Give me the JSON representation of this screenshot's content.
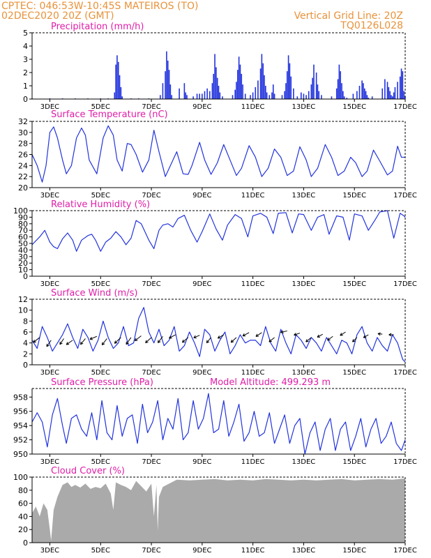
{
  "header": {
    "line1": "CPTEC:   046:53W-10:45S   MATEIROS (TO)",
    "line2": "02DEC2020 20Z (GMT)",
    "grid_note": "Vertical Grid Line: 20Z",
    "code": "TQ0126L028"
  },
  "colors": {
    "header": "#e8923a",
    "title": "#e01ea8",
    "series": "#2233dd",
    "cloud": "#aaaaaa"
  },
  "x_ticks": [
    "3DEC",
    "5DEC",
    "7DEC",
    "9DEC",
    "11DEC",
    "13DEC",
    "15DEC",
    "17DEC"
  ],
  "x_tick_days": [
    3,
    5,
    7,
    9,
    11,
    13,
    15,
    17
  ],
  "chart_data": [
    {
      "type": "bar",
      "title": "Precipitation (mm/h)",
      "ylim": [
        0,
        5
      ],
      "yticks": [
        0,
        1,
        2,
        3,
        4,
        5
      ],
      "x_unit": "day of December 2020",
      "x_range": [
        2.3,
        17.0
      ],
      "x": [
        2.3,
        3.0,
        3.5,
        4.0,
        4.5,
        5.0,
        5.3,
        5.55,
        5.6,
        5.65,
        5.7,
        5.75,
        5.8,
        5.85,
        6.2,
        6.5,
        6.9,
        7.35,
        7.45,
        7.55,
        7.6,
        7.65,
        7.7,
        7.75,
        7.8,
        8.1,
        8.3,
        8.35,
        8.4,
        8.65,
        8.8,
        8.9,
        9.0,
        9.1,
        9.2,
        9.3,
        9.4,
        9.45,
        9.5,
        9.55,
        9.6,
        9.65,
        9.7,
        9.8,
        10.2,
        10.3,
        10.35,
        10.4,
        10.45,
        10.5,
        10.55,
        10.6,
        10.7,
        10.9,
        11.0,
        11.1,
        11.2,
        11.3,
        11.35,
        11.4,
        11.45,
        11.5,
        11.55,
        11.65,
        11.75,
        11.8,
        11.85,
        12.15,
        12.25,
        12.3,
        12.35,
        12.4,
        12.45,
        12.5,
        12.6,
        12.75,
        12.9,
        13.0,
        13.1,
        13.2,
        13.3,
        13.35,
        13.4,
        13.5,
        13.55,
        13.6,
        13.7,
        14.1,
        14.3,
        14.35,
        14.4,
        14.45,
        14.5,
        14.55,
        14.6,
        14.7,
        14.95,
        15.1,
        15.2,
        15.3,
        15.35,
        15.4,
        15.45,
        15.5,
        15.55,
        15.7,
        16.1,
        16.2,
        16.3,
        16.35,
        16.4,
        16.45,
        16.5,
        16.55,
        16.6,
        16.7,
        16.8,
        16.85,
        16.9,
        16.95,
        17.0
      ],
      "values": [
        0.05,
        0.05,
        0.05,
        0.05,
        0.05,
        0.05,
        0.05,
        0.5,
        2.6,
        3.3,
        2.8,
        1.8,
        0.9,
        0.2,
        0.05,
        0.05,
        0.05,
        0.3,
        1.2,
        2.1,
        3.6,
        2.9,
        2.2,
        1.1,
        0.3,
        0.8,
        1.2,
        0.5,
        0.3,
        0.2,
        0.4,
        0.4,
        0.4,
        0.6,
        0.8,
        0.6,
        1.2,
        1.9,
        3.4,
        2.4,
        1.6,
        1.0,
        0.5,
        0.2,
        0.3,
        0.7,
        1.3,
        2.2,
        3.2,
        2.6,
        1.9,
        1.1,
        0.4,
        0.3,
        0.5,
        0.9,
        1.4,
        2.3,
        3.4,
        2.7,
        1.8,
        1.0,
        0.5,
        0.3,
        0.5,
        1.1,
        0.4,
        0.3,
        0.6,
        1.2,
        2.1,
        3.3,
        2.7,
        1.7,
        0.8,
        0.2,
        0.5,
        0.4,
        0.3,
        0.6,
        1.1,
        1.6,
        2.6,
        2.0,
        1.1,
        0.6,
        0.3,
        0.2,
        0.8,
        1.5,
        2.6,
        2.1,
        1.2,
        0.6,
        0.2,
        0.1,
        0.4,
        0.6,
        1.0,
        1.4,
        1.2,
        0.8,
        0.6,
        0.3,
        0.1,
        0.2,
        0.8,
        1.5,
        1.3,
        0.9,
        0.6,
        0.3,
        0.2,
        0.5,
        0.9,
        1.3,
        1.7,
        2.3,
        2.1,
        0.6,
        0.2
      ]
    },
    {
      "type": "line",
      "title": "Surface Temperature (nC)",
      "ylim": [
        20,
        32
      ],
      "yticks": [
        20,
        22,
        24,
        26,
        28,
        30,
        32
      ],
      "x_range": [
        2.3,
        17.0
      ],
      "x": [
        2.3,
        2.5,
        2.7,
        2.85,
        3.0,
        3.15,
        3.3,
        3.5,
        3.65,
        3.85,
        4.05,
        4.25,
        4.4,
        4.55,
        4.85,
        5.1,
        5.3,
        5.5,
        5.65,
        5.85,
        6.05,
        6.2,
        6.4,
        6.65,
        6.9,
        7.1,
        7.3,
        7.55,
        7.75,
        8.0,
        8.25,
        8.45,
        8.6,
        8.9,
        9.1,
        9.35,
        9.6,
        9.85,
        10.1,
        10.35,
        10.55,
        10.85,
        11.1,
        11.35,
        11.6,
        11.85,
        12.1,
        12.35,
        12.6,
        12.85,
        13.1,
        13.3,
        13.55,
        13.85,
        14.1,
        14.35,
        14.6,
        14.85,
        15.05,
        15.3,
        15.5,
        15.75,
        16.0,
        16.3,
        16.5,
        16.7,
        16.85,
        17.0
      ],
      "values": [
        26.0,
        24.0,
        21.0,
        24.0,
        30.0,
        31.0,
        29.0,
        25.0,
        22.5,
        24.0,
        29.0,
        30.8,
        29.5,
        25.0,
        22.5,
        29.0,
        31.2,
        29.5,
        25.0,
        23.0,
        28.0,
        27.8,
        26.0,
        22.8,
        25.0,
        30.4,
        26.5,
        22.0,
        24.0,
        26.5,
        22.5,
        22.4,
        24.0,
        28.2,
        25.0,
        22.4,
        24.5,
        27.8,
        25.0,
        22.2,
        23.5,
        27.6,
        25.5,
        22.0,
        23.5,
        27.0,
        25.5,
        22.2,
        23.0,
        27.4,
        25.0,
        22.0,
        23.5,
        27.8,
        25.5,
        22.2,
        23.0,
        25.5,
        24.5,
        22.0,
        23.0,
        26.8,
        24.8,
        22.3,
        23.0,
        27.5,
        25.5,
        25.5
      ]
    },
    {
      "type": "line",
      "title": "Relative Humidity (%)",
      "ylim": [
        0,
        100
      ],
      "yticks": [
        0,
        10,
        20,
        30,
        40,
        50,
        60,
        70,
        80,
        90,
        100
      ],
      "x_range": [
        2.3,
        17.0
      ],
      "x": [
        2.3,
        2.6,
        2.8,
        3.0,
        3.15,
        3.3,
        3.5,
        3.7,
        3.9,
        4.05,
        4.25,
        4.5,
        4.65,
        4.8,
        5.0,
        5.2,
        5.4,
        5.6,
        5.8,
        6.0,
        6.2,
        6.4,
        6.6,
        6.9,
        7.1,
        7.3,
        7.45,
        7.65,
        7.85,
        8.05,
        8.3,
        8.55,
        8.8,
        9.0,
        9.3,
        9.55,
        9.8,
        10.0,
        10.3,
        10.55,
        10.8,
        11.0,
        11.3,
        11.55,
        11.8,
        12.0,
        12.3,
        12.55,
        12.8,
        13.0,
        13.3,
        13.55,
        13.8,
        14.0,
        14.3,
        14.55,
        14.8,
        15.0,
        15.3,
        15.55,
        15.8,
        16.0,
        16.3,
        16.55,
        16.8,
        16.95,
        17.0
      ],
      "values": [
        48,
        60,
        70,
        52,
        45,
        42,
        57,
        66,
        55,
        38,
        55,
        62,
        64,
        55,
        38,
        52,
        58,
        68,
        60,
        48,
        58,
        85,
        80,
        55,
        42,
        70,
        78,
        80,
        75,
        88,
        93,
        70,
        52,
        68,
        95,
        72,
        55,
        78,
        94,
        88,
        60,
        92,
        96,
        90,
        65,
        96,
        97,
        66,
        95,
        94,
        70,
        90,
        94,
        64,
        92,
        90,
        55,
        95,
        92,
        70,
        85,
        98,
        100,
        58,
        96,
        92,
        90
      ]
    },
    {
      "type": "line",
      "title": "Surface Wind (m/s)",
      "ylim": [
        0,
        12
      ],
      "yticks": [
        0,
        2,
        4,
        6,
        8,
        10,
        12
      ],
      "x_range": [
        2.3,
        17.0
      ],
      "x": [
        2.3,
        2.5,
        2.7,
        2.9,
        3.1,
        3.3,
        3.5,
        3.7,
        3.9,
        4.1,
        4.3,
        4.5,
        4.7,
        4.9,
        5.1,
        5.3,
        5.5,
        5.7,
        5.9,
        6.1,
        6.3,
        6.5,
        6.7,
        6.9,
        7.1,
        7.3,
        7.5,
        7.7,
        7.9,
        8.1,
        8.3,
        8.5,
        8.7,
        8.9,
        9.1,
        9.3,
        9.5,
        9.7,
        9.9,
        10.1,
        10.3,
        10.5,
        10.7,
        10.9,
        11.1,
        11.3,
        11.5,
        11.7,
        11.9,
        12.1,
        12.3,
        12.5,
        12.7,
        12.9,
        13.1,
        13.3,
        13.5,
        13.7,
        13.9,
        14.1,
        14.3,
        14.5,
        14.7,
        14.9,
        15.1,
        15.3,
        15.5,
        15.7,
        15.9,
        16.1,
        16.3,
        16.5,
        16.7,
        16.9,
        17.0
      ],
      "values": [
        4.5,
        3.0,
        7.0,
        5.0,
        2.5,
        4.0,
        5.5,
        7.5,
        5.0,
        3.0,
        6.5,
        5.0,
        2.5,
        4.5,
        8.0,
        5.0,
        3.0,
        4.0,
        7.0,
        3.5,
        4.0,
        8.5,
        10.5,
        6.0,
        4.0,
        6.5,
        3.5,
        4.5,
        7.0,
        2.5,
        3.5,
        6.0,
        4.0,
        1.5,
        6.5,
        5.5,
        2.5,
        4.5,
        6.0,
        2.0,
        3.5,
        5.5,
        4.0,
        4.5,
        4.5,
        3.5,
        7.0,
        4.0,
        2.5,
        6.5,
        4.0,
        2.0,
        5.5,
        4.5,
        3.0,
        5.0,
        4.0,
        2.5,
        5.0,
        3.5,
        2.0,
        4.5,
        4.0,
        2.0,
        5.5,
        7.0,
        4.0,
        2.5,
        5.0,
        3.5,
        2.5,
        5.5,
        4.0,
        1.0,
        0.5
      ],
      "vectors": [
        {
          "x": 2.6,
          "y": 5.0,
          "u": -1.3,
          "v": -1.0
        },
        {
          "x": 3.05,
          "y": 4.5,
          "u": -0.9,
          "v": -1.3
        },
        {
          "x": 3.55,
          "y": 4.8,
          "u": -0.8,
          "v": -1.2
        },
        {
          "x": 3.9,
          "y": 4.5,
          "u": -1.3,
          "v": -0.9
        },
        {
          "x": 4.4,
          "y": 4.8,
          "u": -1.0,
          "v": -1.2
        },
        {
          "x": 4.85,
          "y": 5.2,
          "u": -1.4,
          "v": -0.6
        },
        {
          "x": 5.25,
          "y": 4.8,
          "u": -1.0,
          "v": -1.3
        },
        {
          "x": 5.8,
          "y": 5.0,
          "u": -1.3,
          "v": -1.2
        },
        {
          "x": 6.2,
          "y": 5.0,
          "u": -1.0,
          "v": -1.4
        },
        {
          "x": 6.6,
          "y": 5.3,
          "u": -1.3,
          "v": -1.0
        },
        {
          "x": 7.0,
          "y": 5.0,
          "u": -1.2,
          "v": -1.1
        },
        {
          "x": 7.45,
          "y": 5.2,
          "u": -1.0,
          "v": -1.3
        },
        {
          "x": 7.95,
          "y": 5.5,
          "u": -1.3,
          "v": -0.7
        },
        {
          "x": 8.45,
          "y": 5.0,
          "u": -1.2,
          "v": -1.0
        },
        {
          "x": 8.9,
          "y": 5.4,
          "u": -1.2,
          "v": -0.5
        },
        {
          "x": 9.35,
          "y": 5.0,
          "u": -0.9,
          "v": -1.1
        },
        {
          "x": 9.85,
          "y": 5.5,
          "u": -1.2,
          "v": -0.7
        },
        {
          "x": 10.35,
          "y": 5.0,
          "u": -1.1,
          "v": -1.0
        },
        {
          "x": 10.85,
          "y": 5.9,
          "u": -1.3,
          "v": -0.7
        },
        {
          "x": 11.35,
          "y": 5.9,
          "u": -1.2,
          "v": -0.8
        },
        {
          "x": 11.85,
          "y": 5.0,
          "u": -1.1,
          "v": -0.9
        },
        {
          "x": 12.35,
          "y": 6.2,
          "u": -1.3,
          "v": -0.3
        },
        {
          "x": 12.85,
          "y": 5.8,
          "u": -1.2,
          "v": -0.4
        },
        {
          "x": 13.3,
          "y": 5.0,
          "u": -1.1,
          "v": -0.9
        },
        {
          "x": 13.75,
          "y": 5.6,
          "u": -1.1,
          "v": -0.6
        },
        {
          "x": 14.15,
          "y": 5.2,
          "u": -1.1,
          "v": -0.8
        },
        {
          "x": 14.65,
          "y": 6.0,
          "u": -1.1,
          "v": -0.7
        },
        {
          "x": 15.1,
          "y": 5.0,
          "u": -0.9,
          "v": -0.9
        },
        {
          "x": 15.55,
          "y": 5.5,
          "u": -1.0,
          "v": -0.6
        },
        {
          "x": 16.1,
          "y": 5.6,
          "u": -0.9,
          "v": 0.1
        },
        {
          "x": 16.55,
          "y": 5.5,
          "u": -1.0,
          "v": 0.0
        }
      ]
    },
    {
      "type": "line",
      "title": "Surface Pressure (hPa)",
      "model_altitude_label": "Model Altitude: 499.293 m",
      "ylim": [
        950,
        959.2
      ],
      "yticks": [
        950,
        952,
        954,
        956,
        958
      ],
      "x_range": [
        2.3,
        17.0
      ],
      "x": [
        2.3,
        2.5,
        2.7,
        2.9,
        3.1,
        3.3,
        3.5,
        3.65,
        3.85,
        4.05,
        4.25,
        4.45,
        4.65,
        4.85,
        5.05,
        5.25,
        5.45,
        5.65,
        5.85,
        6.05,
        6.25,
        6.45,
        6.65,
        6.85,
        7.05,
        7.25,
        7.45,
        7.65,
        7.85,
        8.05,
        8.25,
        8.45,
        8.65,
        8.85,
        9.05,
        9.25,
        9.45,
        9.65,
        9.85,
        10.05,
        10.25,
        10.45,
        10.65,
        10.85,
        11.05,
        11.25,
        11.45,
        11.65,
        11.85,
        12.05,
        12.25,
        12.45,
        12.65,
        12.85,
        13.05,
        13.25,
        13.45,
        13.65,
        13.85,
        14.05,
        14.25,
        14.45,
        14.65,
        14.85,
        15.05,
        15.25,
        15.45,
        15.65,
        15.85,
        16.05,
        16.25,
        16.45,
        16.65,
        16.85,
        17.0
      ],
      "values": [
        954.5,
        955.8,
        954.5,
        951.0,
        955.5,
        957.8,
        954.0,
        951.5,
        955.0,
        955.5,
        953.5,
        952.5,
        955.8,
        952.0,
        957.5,
        953.0,
        952.0,
        956.8,
        952.5,
        955.0,
        955.5,
        951.5,
        957.0,
        953.0,
        954.5,
        957.5,
        952.0,
        955.0,
        953.5,
        957.8,
        952.0,
        953.0,
        957.5,
        953.5,
        955.0,
        958.5,
        953.0,
        953.5,
        957.5,
        952.5,
        954.5,
        957.0,
        951.8,
        953.0,
        956.0,
        952.5,
        953.0,
        955.8,
        951.5,
        953.5,
        955.5,
        951.5,
        954.0,
        955.0,
        950.0,
        953.0,
        954.5,
        950.5,
        953.5,
        955.0,
        950.5,
        953.5,
        954.5,
        950.5,
        952.5,
        955.0,
        951.0,
        953.5,
        955.0,
        951.5,
        952.5,
        954.5,
        951.5,
        950.5,
        952.0
      ]
    },
    {
      "type": "area",
      "title": "Cloud Cover (%)",
      "ylim": [
        0,
        100
      ],
      "yticks": [
        0,
        20,
        40,
        60,
        80,
        100
      ],
      "x_range": [
        2.3,
        17.0
      ],
      "x": [
        2.3,
        2.45,
        2.6,
        2.75,
        2.9,
        3.0,
        3.05,
        3.15,
        3.3,
        3.5,
        3.7,
        3.85,
        4.0,
        4.2,
        4.4,
        4.6,
        4.8,
        5.0,
        5.2,
        5.4,
        5.5,
        5.6,
        5.8,
        6.0,
        6.2,
        6.4,
        6.6,
        6.8,
        7.0,
        7.1,
        7.2,
        7.25,
        7.3,
        7.45,
        7.6,
        7.8,
        8.0,
        8.5,
        9.0,
        9.5,
        10.0,
        10.5,
        11.0,
        11.5,
        12.0,
        12.5,
        13.0,
        13.5,
        14.0,
        14.5,
        15.0,
        15.5,
        16.0,
        16.5,
        17.0
      ],
      "values": [
        45,
        55,
        40,
        60,
        50,
        20,
        3,
        50,
        70,
        88,
        92,
        85,
        88,
        84,
        90,
        82,
        85,
        83,
        90,
        75,
        50,
        92,
        88,
        85,
        80,
        94,
        86,
        78,
        90,
        40,
        88,
        18,
        70,
        85,
        88,
        92,
        96,
        95,
        96,
        97,
        95,
        96,
        95,
        97,
        96,
        95,
        96,
        95,
        96,
        97,
        95,
        96,
        97,
        96,
        98
      ]
    }
  ]
}
